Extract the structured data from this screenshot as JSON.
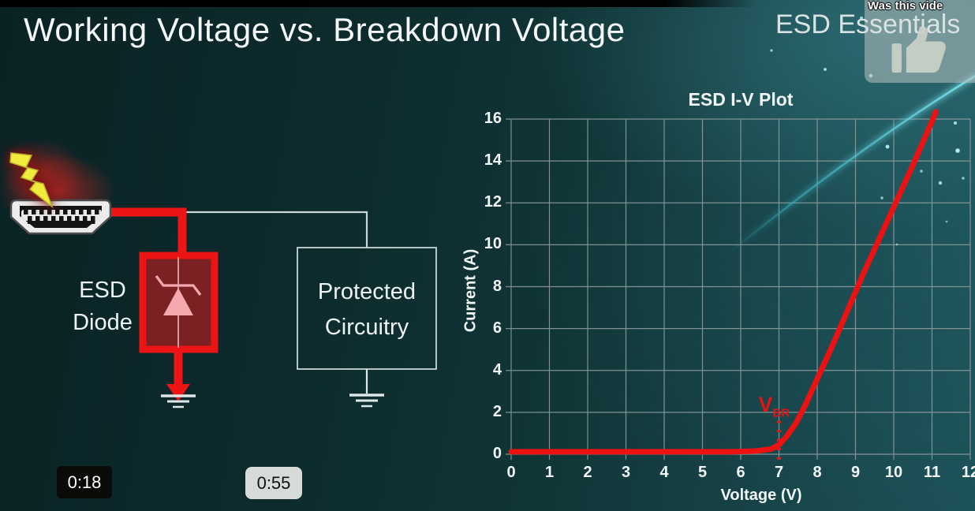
{
  "slide": {
    "title": "Working Voltage vs. Breakdown Voltage",
    "watermark": "ESD Essentials"
  },
  "overlay": {
    "question_text": "Was this vide",
    "thumb_icon": "thumbs-up-icon",
    "panel_color": "#b0bcba"
  },
  "time_chips": {
    "chip1": "0:18",
    "chip2": "0:55"
  },
  "diagram": {
    "esd_diode_label_line1": "ESD",
    "esd_diode_label_line2": "Diode",
    "protected_label_line1": "Protected",
    "protected_label_line2": "Circuitry",
    "connector_icon": "hdmi-connector-icon",
    "strike_icon": "lightning-bolt-icon",
    "ground_icon": "ground-symbol-icon",
    "wire_color_surge": "#ec1414",
    "wire_color_signal": "#c9d6d6",
    "diode_box_fill": "#7c2123",
    "diode_symbol_color": "#f5a8ae"
  },
  "chart_data": {
    "type": "line",
    "title": "ESD I-V Plot",
    "xlabel": "Voltage (V)",
    "ylabel": "Current (A)",
    "xlim": [
      0,
      12
    ],
    "ylim": [
      0,
      16
    ],
    "x_ticks": [
      0,
      1,
      2,
      3,
      4,
      5,
      6,
      7,
      8,
      9,
      10,
      11,
      12
    ],
    "y_ticks": [
      0,
      2,
      4,
      6,
      8,
      10,
      12,
      14,
      16
    ],
    "grid": true,
    "grid_color": "#93a0a0",
    "series": [
      {
        "name": "ESD diode I-V curve",
        "color": "#ec1212",
        "points": [
          [
            0,
            0.12
          ],
          [
            5.8,
            0.12
          ],
          [
            6.4,
            0.15
          ],
          [
            6.8,
            0.25
          ],
          [
            7.0,
            0.45
          ],
          [
            7.2,
            0.85
          ],
          [
            7.45,
            1.5
          ],
          [
            7.7,
            2.4
          ],
          [
            8.0,
            3.6
          ],
          [
            8.4,
            5.2
          ],
          [
            8.8,
            6.9
          ],
          [
            9.2,
            8.6
          ],
          [
            9.6,
            10.2
          ],
          [
            10.0,
            11.8
          ],
          [
            10.5,
            13.8
          ],
          [
            11.0,
            15.9
          ],
          [
            11.1,
            16.35
          ]
        ]
      }
    ],
    "annotation": {
      "label": "V",
      "sub": "BR",
      "x": 7,
      "dotted_from": -0.25,
      "dotted_to": 1.75,
      "color": "#e51414"
    }
  }
}
